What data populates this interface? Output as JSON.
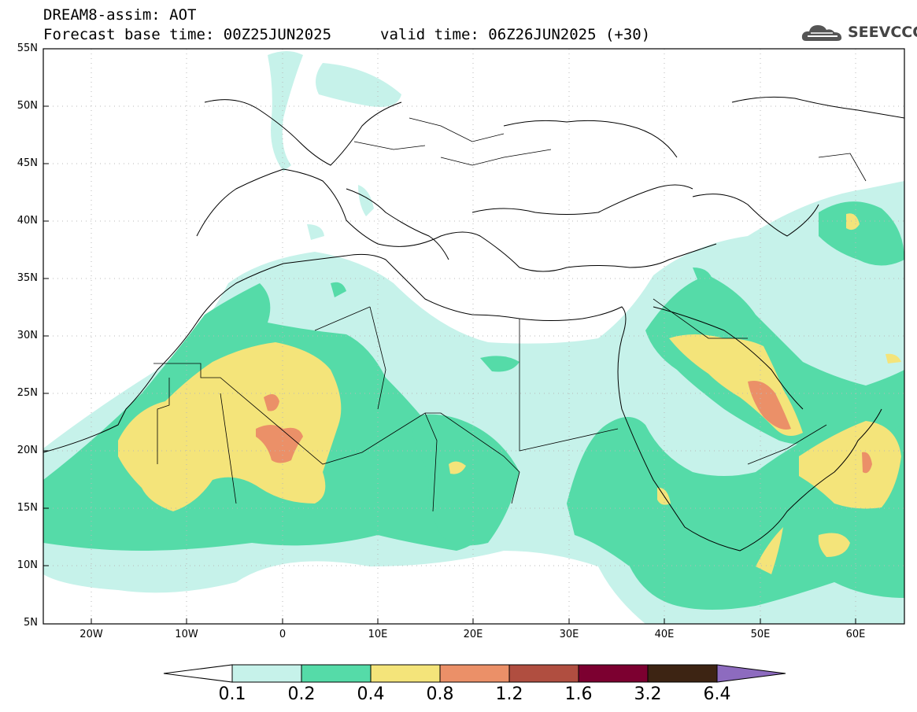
{
  "header": {
    "title": "DREAM8-assim: AOT",
    "base_time": "Forecast base time: 00Z25JUN2025",
    "valid_time": "valid time: 06Z26JUN2025 (+30)",
    "logo_text": "SEEVCCC"
  },
  "map": {
    "lat_labels": [
      "55N",
      "50N",
      "45N",
      "40N",
      "35N",
      "30N",
      "25N",
      "20N",
      "15N",
      "10N",
      "5N"
    ],
    "lon_labels": [
      "20W",
      "10W",
      "0",
      "10E",
      "20E",
      "30E",
      "40E",
      "50E",
      "60E"
    ]
  },
  "legend": {
    "labels": [
      "0.1",
      "0.2",
      "0.4",
      "0.8",
      "1.2",
      "1.6",
      "3.2",
      "6.4"
    ],
    "colors": [
      "#c6f2ea",
      "#55dba8",
      "#f4e47a",
      "#eb9068",
      "#b04e40",
      "#7c0030",
      "#3d2413",
      "#8d6bbf"
    ]
  }
}
